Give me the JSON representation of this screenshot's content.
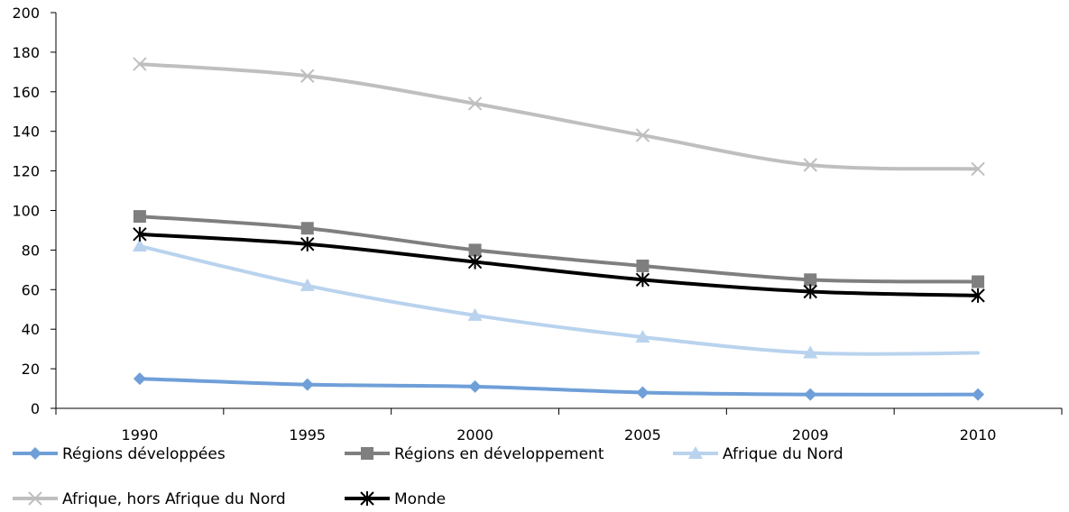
{
  "chart_data": {
    "type": "line",
    "title": "",
    "xlabel": "",
    "ylabel": "",
    "categories": [
      "1990",
      "1995",
      "2000",
      "2005",
      "2009",
      "2010"
    ],
    "ylim": [
      0,
      200
    ],
    "yticks": [
      0,
      20,
      40,
      60,
      80,
      100,
      120,
      140,
      160,
      180,
      200
    ],
    "grid": false,
    "legend_position": "bottom",
    "series": [
      {
        "name": "Régions développées",
        "values": [
          15,
          12,
          11,
          8,
          7,
          7
        ],
        "color": "#6f9fd8",
        "marker": "diamond"
      },
      {
        "name": "Régions en développement",
        "values": [
          97,
          91,
          80,
          72,
          65,
          64
        ],
        "color": "#7f7f7f",
        "marker": "square"
      },
      {
        "name": "Afrique du Nord",
        "values": [
          82,
          62,
          47,
          36,
          28,
          28
        ],
        "color": "#b9d3ee",
        "marker": "triangle"
      },
      {
        "name": "Afrique, hors Afrique du Nord",
        "values": [
          174,
          168,
          154,
          138,
          123,
          121
        ],
        "color": "#bfbfbf",
        "marker": "x"
      },
      {
        "name": "Monde",
        "values": [
          88,
          83,
          74,
          65,
          59,
          57
        ],
        "color": "#000000",
        "marker": "star"
      }
    ]
  }
}
